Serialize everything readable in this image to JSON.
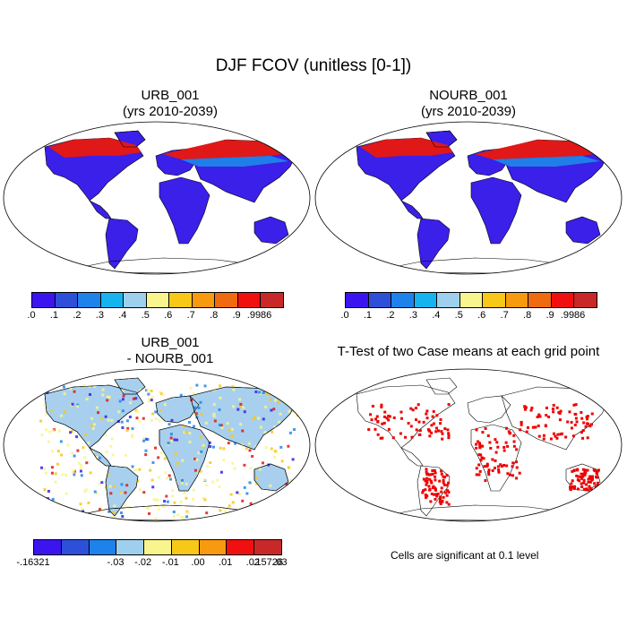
{
  "figure_title": "DJF FCOV (unitless [0-1])",
  "panels": {
    "top_left": {
      "title": "URB_001",
      "subtitle": "(yrs 2010-2039)"
    },
    "top_right": {
      "title": "NOURB_001",
      "subtitle": "(yrs 2010-2039)"
    },
    "bottom_left": {
      "title": "URB_001",
      "subtitle": "- NOURB_001"
    },
    "bottom_right": {
      "title": "T-Test of two Case means at each grid point"
    }
  },
  "colorbar_top": {
    "labels": [
      ".0",
      ".1",
      ".2",
      ".3",
      ".4",
      ".5",
      ".6",
      ".7",
      ".8",
      ".9",
      ".9986"
    ],
    "colors": [
      "#3c14f0",
      "#2e50d8",
      "#1e82eb",
      "#16b4ef",
      "#9ed0ee",
      "#f8f48e",
      "#f8c818",
      "#f89a10",
      "#f06a10",
      "#f01010",
      "#c82828"
    ]
  },
  "colorbar_diff": {
    "labels": [
      "-.16321",
      "-.03",
      "-.02",
      "-.01",
      ".00",
      ".01",
      ".02",
      ".03",
      ".15726"
    ],
    "colors": [
      "#3c14f0",
      "#2e50d8",
      "#1e82eb",
      "#9ed0ee",
      "#f8f48e",
      "#f8c818",
      "#f89a10",
      "#f01010",
      "#c82828"
    ]
  },
  "significance_note": "Cells are significant at 0.1 level",
  "colors": {
    "ocean": "#ffffff",
    "low": "#3a20e8",
    "mid_blue": "#1e88e8",
    "high": "#e01818",
    "yellow": "#f8f48e",
    "light_blue": "#a8d0ee",
    "sig": "#ee0000"
  }
}
